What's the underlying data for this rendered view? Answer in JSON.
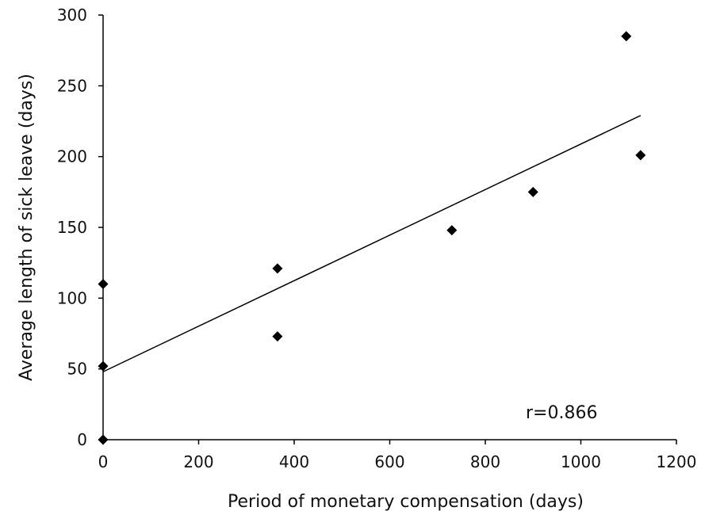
{
  "chart_data": {
    "type": "scatter",
    "xlabel": "Period of monetary compensation (days)",
    "ylabel": "Average length of sick leave (days)",
    "xlim": [
      0,
      1200
    ],
    "ylim": [
      0,
      300
    ],
    "x_ticks": [
      "0",
      "200",
      "400",
      "600",
      "800",
      "1000",
      "1200"
    ],
    "y_ticks": [
      "0",
      "50",
      "100",
      "150",
      "200",
      "250",
      "300"
    ],
    "grid": false,
    "legend": "none",
    "points": [
      {
        "x": 0,
        "y": 0
      },
      {
        "x": 0,
        "y": 52
      },
      {
        "x": 0,
        "y": 110
      },
      {
        "x": 365,
        "y": 73
      },
      {
        "x": 365,
        "y": 121
      },
      {
        "x": 730,
        "y": 148
      },
      {
        "x": 900,
        "y": 175
      },
      {
        "x": 1095,
        "y": 285
      },
      {
        "x": 1125,
        "y": 201
      }
    ],
    "trendline": {
      "x": [
        0,
        1125
      ],
      "y": [
        48,
        229
      ]
    },
    "annotation": "r=0.866",
    "marker_color": "#000000",
    "line_color": "#000000"
  }
}
